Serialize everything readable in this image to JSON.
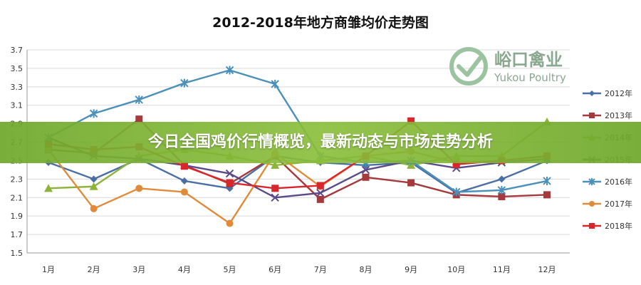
{
  "banner": {
    "headline": "今日全国鸡价行情概览，最新动态与市场走势分析"
  },
  "watermark": {
    "name_cn": "峪口禽业",
    "name_en": "Yukou Poultry"
  },
  "chart_data": {
    "type": "line",
    "title": "2012-2018年地方商雏均价走势图",
    "xlabel": "",
    "ylabel": "",
    "categories": [
      "1月",
      "2月",
      "3月",
      "4月",
      "5月",
      "6月",
      "7月",
      "8月",
      "9月",
      "10月",
      "11月",
      "12月"
    ],
    "ylim": [
      1.5,
      3.7
    ],
    "yticks": [
      "1.5",
      "1.7",
      "1.9",
      "2.1",
      "2.3",
      "2.5",
      "2.7",
      "2.9",
      "3.1",
      "3.3",
      "3.5",
      "3.7"
    ],
    "grid": true,
    "legend_position": "right",
    "series": [
      {
        "name": "2012年",
        "color": "#4a6fa5",
        "marker": "diamond",
        "values": [
          2.48,
          2.3,
          2.52,
          2.28,
          2.2,
          2.55,
          2.48,
          2.45,
          2.48,
          2.15,
          2.3,
          2.5
        ]
      },
      {
        "name": "2013年",
        "color": "#a5393b",
        "marker": "square",
        "values": [
          2.62,
          2.58,
          2.95,
          2.45,
          2.25,
          2.55,
          2.08,
          2.32,
          2.26,
          2.13,
          2.11,
          2.13
        ]
      },
      {
        "name": "2014年",
        "color": "#8db33a",
        "marker": "triangle",
        "values": [
          2.2,
          2.22,
          2.55,
          2.62,
          2.55,
          2.45,
          2.5,
          2.55,
          2.45,
          2.55,
          2.55,
          2.92
        ]
      },
      {
        "name": "2015年",
        "color": "#5b4a8a",
        "marker": "x",
        "values": [
          2.75,
          2.55,
          2.52,
          2.45,
          2.36,
          2.1,
          2.15,
          2.4,
          2.5,
          2.42,
          2.48,
          2.52
        ]
      },
      {
        "name": "2016年",
        "color": "#4a90b8",
        "marker": "star",
        "values": [
          2.75,
          3.01,
          3.16,
          3.34,
          3.48,
          3.33,
          2.55,
          2.48,
          2.5,
          2.16,
          2.18,
          2.28
        ]
      },
      {
        "name": "2017年",
        "color": "#e08b3a",
        "marker": "circle",
        "values": [
          2.62,
          1.98,
          2.2,
          2.16,
          1.82,
          2.58,
          2.22,
          2.55,
          2.6,
          2.48,
          2.5,
          2.55
        ]
      },
      {
        "name": "2018年",
        "color": "#d8262c",
        "marker": "square",
        "values": [
          2.68,
          2.62,
          2.65,
          2.44,
          2.26,
          2.2,
          2.23,
          2.55,
          2.93,
          2.46,
          2.5,
          2.55
        ]
      }
    ]
  }
}
